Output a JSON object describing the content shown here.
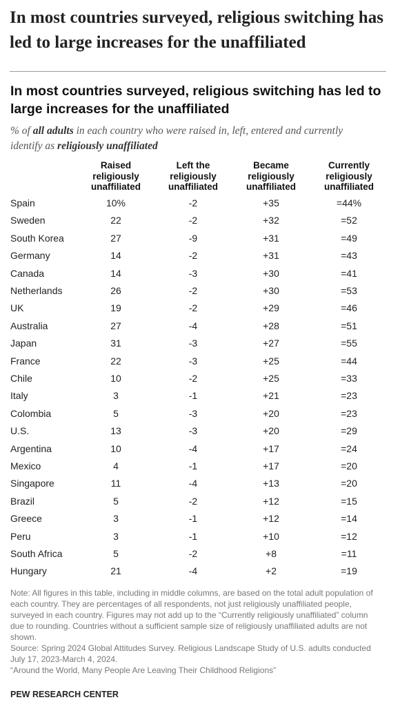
{
  "headline": "In most countries surveyed, religious switching has led to large increases for the unaffiliated",
  "title": "In most countries surveyed, religious switching has led to large increases for the unaffiliated",
  "subtitle": {
    "parts": [
      "% of ",
      "all adults",
      " in each country who were raised in, left, entered and currently identify as ",
      "religiously unaffiliated"
    ]
  },
  "table": {
    "columns": [
      "Raised religiously unaffiliated",
      "Left the religiously unaffiliated",
      "Became religiously unaffiliated",
      "Currently religiously unaffiliated"
    ],
    "rows": [
      [
        "Spain",
        "10%",
        "-2",
        "+35",
        "=44%"
      ],
      [
        "Sweden",
        "22",
        "-2",
        "+32",
        "=52"
      ],
      [
        "South Korea",
        "27",
        "-9",
        "+31",
        "=49"
      ],
      [
        "Germany",
        "14",
        "-2",
        "+31",
        "=43"
      ],
      [
        "Canada",
        "14",
        "-3",
        "+30",
        "=41"
      ],
      [
        "Netherlands",
        "26",
        "-2",
        "+30",
        "=53"
      ],
      [
        "UK",
        "19",
        "-2",
        "+29",
        "=46"
      ],
      [
        "Australia",
        "27",
        "-4",
        "+28",
        "=51"
      ],
      [
        "Japan",
        "31",
        "-3",
        "+27",
        "=55"
      ],
      [
        "France",
        "22",
        "-3",
        "+25",
        "=44"
      ],
      [
        "Chile",
        "10",
        "-2",
        "+25",
        "=33"
      ],
      [
        "Italy",
        "3",
        "-1",
        "+21",
        "=23"
      ],
      [
        "Colombia",
        "5",
        "-3",
        "+20",
        "=23"
      ],
      [
        "U.S.",
        "13",
        "-3",
        "+20",
        "=29"
      ],
      [
        "Argentina",
        "10",
        "-4",
        "+17",
        "=24"
      ],
      [
        "Mexico",
        "4",
        "-1",
        "+17",
        "=20"
      ],
      [
        "Singapore",
        "11",
        "-4",
        "+13",
        "=20"
      ],
      [
        "Brazil",
        "5",
        "-2",
        "+12",
        "=15"
      ],
      [
        "Greece",
        "3",
        "-1",
        "+12",
        "=14"
      ],
      [
        "Peru",
        "3",
        "-1",
        "+10",
        "=12"
      ],
      [
        "South Africa",
        "5",
        "-2",
        "+8",
        "=11"
      ],
      [
        "Hungary",
        "21",
        "-4",
        "+2",
        "=19"
      ]
    ]
  },
  "notes": {
    "note": "Note: All figures in this table, including in middle columns, are based on the total adult population of each country. They are percentages of all respondents, not just religiously unaffiliated people, surveyed in each country. Figures may not add up to the “Currently religiously unaffiliated” column due to rounding. Countries without a sufficient sample size of religiously unaffiliated adults are not shown.",
    "source": "Source: Spring 2024 Global Attitudes Survey. Religious Landscape Study of U.S. adults conducted July 17, 2023-March 4, 2024.",
    "report": "“Around the World, Many People Are Leaving Their Childhood Religions”",
    "org": "PEW RESEARCH CENTER"
  }
}
